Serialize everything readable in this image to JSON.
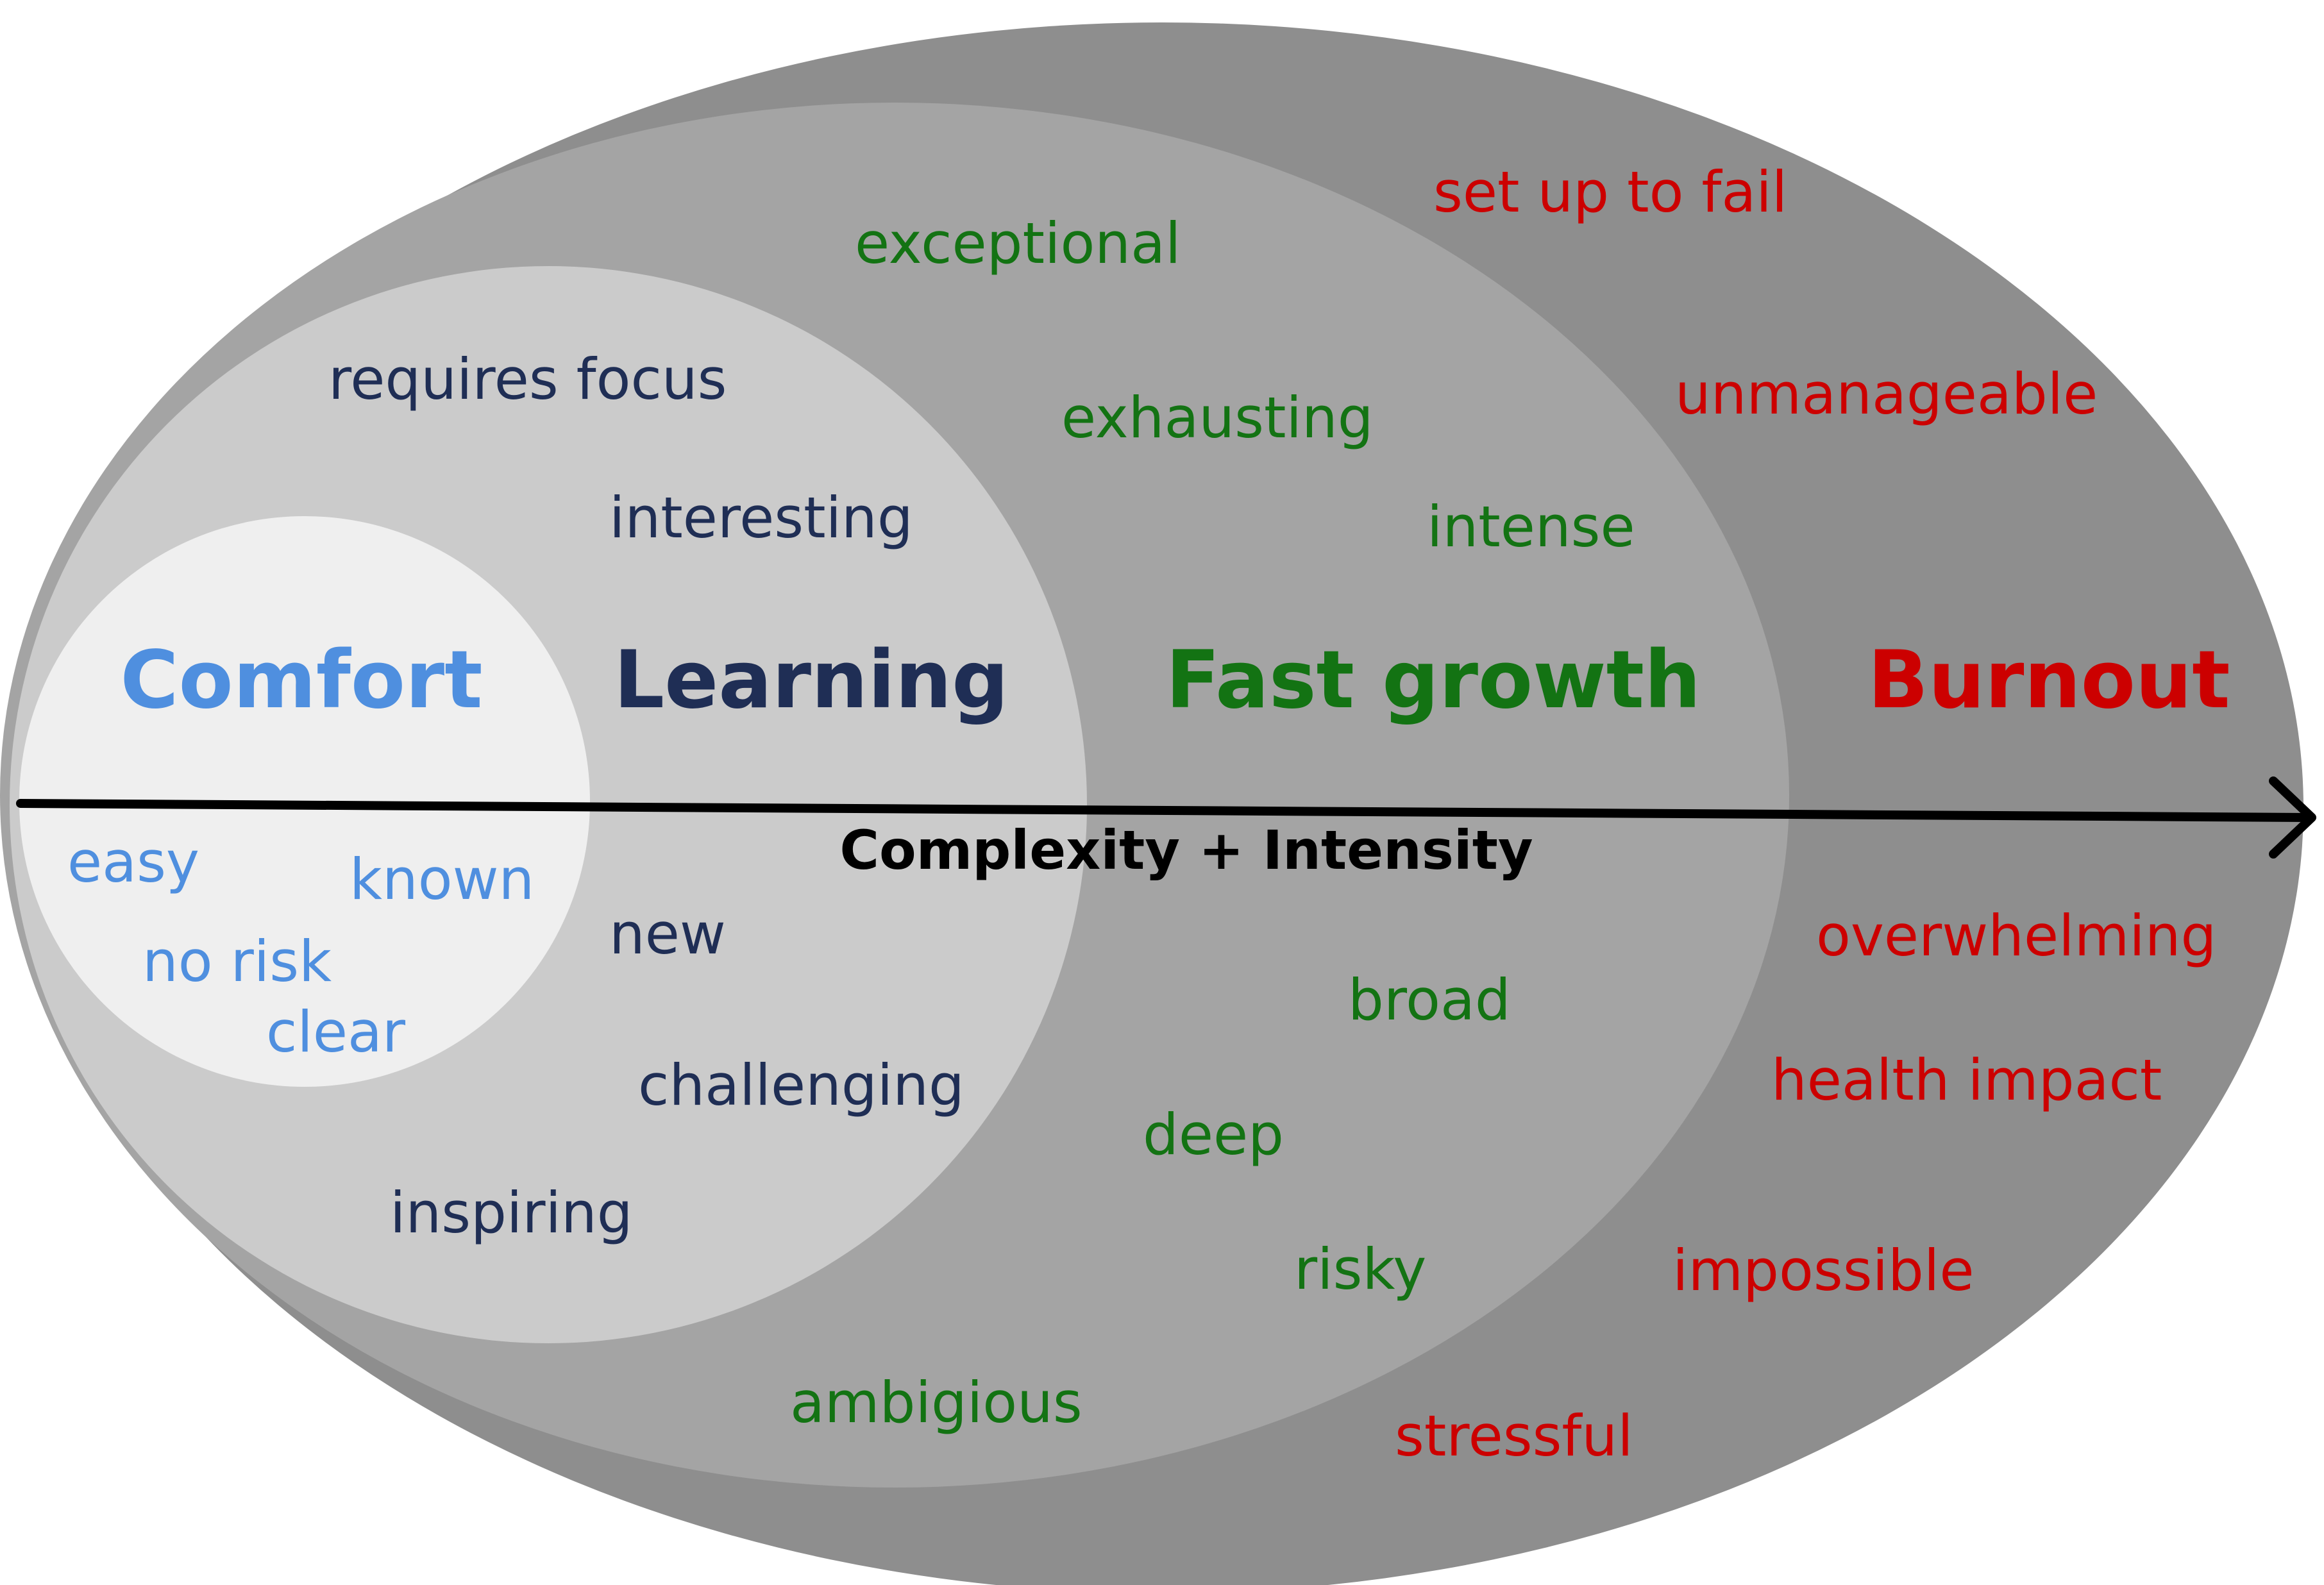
{
  "colors": {
    "burnout_zone": "#8e8e8e",
    "growth_zone": "#a4a4a4",
    "learning_zone": "#cbcbcb",
    "comfort_zone": "#efefef",
    "comfort_text": "#4f8fdf",
    "learning_text": "#1f2e55",
    "growth_text": "#137313",
    "burnout_text": "#cc0000",
    "axis": "#000000"
  },
  "axis": {
    "label": "Complexity + Intensity",
    "arrow_icon": "arrow-right-icon"
  },
  "zones": {
    "comfort": {
      "title": "Comfort",
      "words": [
        "easy",
        "known",
        "no risk",
        "clear"
      ]
    },
    "learning": {
      "title": "Learning",
      "words": [
        "requires focus",
        "interesting",
        "new",
        "challenging",
        "inspiring"
      ]
    },
    "growth": {
      "title": "Fast growth",
      "words": [
        "exceptional",
        "exhausting",
        "intense",
        "broad",
        "deep",
        "risky",
        "ambigious"
      ]
    },
    "burnout": {
      "title": "Burnout",
      "words": [
        "set up to fail",
        "unmanageable",
        "overwhelming",
        "health impact",
        "impossible",
        "stressful"
      ]
    }
  }
}
